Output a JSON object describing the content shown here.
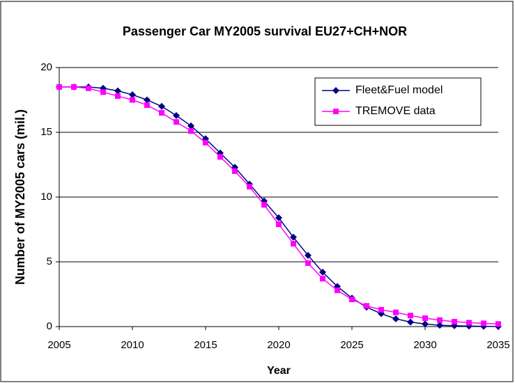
{
  "chart_data": {
    "type": "line",
    "title": "Passenger Car MY2005 survival EU27+CH+NOR",
    "x_label": "Year",
    "y_label": "Number of MY2005 cars (mil.)",
    "x": [
      2005,
      2006,
      2007,
      2008,
      2009,
      2010,
      2011,
      2012,
      2013,
      2014,
      2015,
      2016,
      2017,
      2018,
      2019,
      2020,
      2021,
      2022,
      2023,
      2024,
      2025,
      2026,
      2027,
      2028,
      2029,
      2030,
      2031,
      2032,
      2033,
      2034,
      2035
    ],
    "series": [
      {
        "name": "Fleet&Fuel model",
        "color": "#000080",
        "marker": "diamond",
        "values": [
          18.5,
          18.5,
          18.5,
          18.4,
          18.2,
          17.9,
          17.5,
          17.0,
          16.3,
          15.5,
          14.5,
          13.4,
          12.3,
          11.0,
          9.7,
          8.4,
          6.9,
          5.5,
          4.2,
          3.1,
          2.2,
          1.5,
          1.0,
          0.6,
          0.35,
          0.2,
          0.1,
          0.07,
          0.04,
          0.02,
          0.01
        ]
      },
      {
        "name": "TREMOVE data",
        "color": "#FF00FF",
        "marker": "square",
        "values": [
          18.5,
          18.5,
          18.4,
          18.1,
          17.8,
          17.5,
          17.1,
          16.5,
          15.8,
          15.1,
          14.2,
          13.1,
          12.0,
          10.8,
          9.4,
          7.9,
          6.4,
          4.9,
          3.7,
          2.8,
          2.1,
          1.6,
          1.3,
          1.1,
          0.85,
          0.65,
          0.5,
          0.38,
          0.3,
          0.25,
          0.2
        ]
      }
    ],
    "xlim": [
      2005,
      2035
    ],
    "xticks": [
      2005,
      2010,
      2015,
      2020,
      2025,
      2030,
      2035
    ],
    "ylim": [
      0,
      20
    ],
    "yticks": [
      0,
      5,
      10,
      15,
      20
    ],
    "grid": true,
    "legend": "upper right"
  }
}
